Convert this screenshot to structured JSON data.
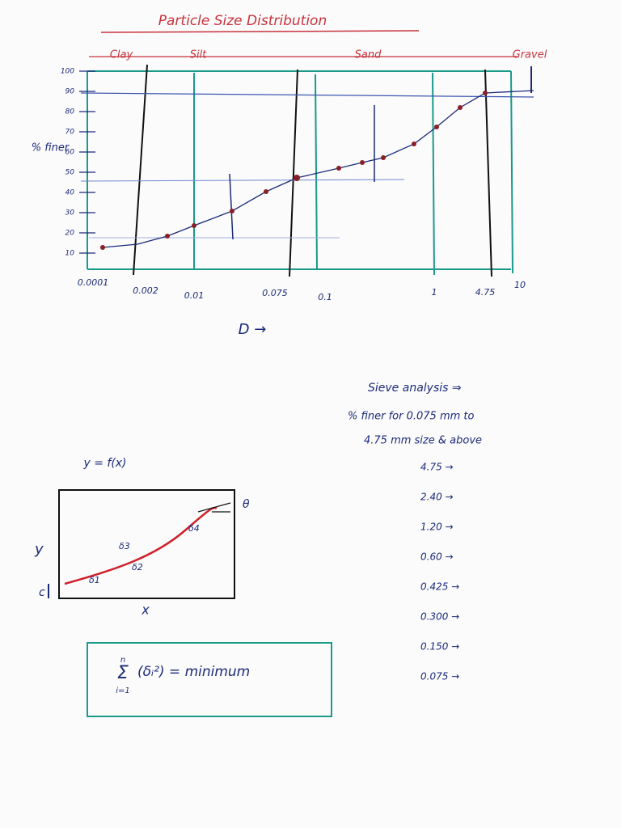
{
  "title": "Particle Size Distribution",
  "psd_chart": {
    "soil_classes": [
      "Clay",
      "Silt",
      "Sand",
      "Gravel"
    ],
    "y_axis_label": "% finer",
    "x_axis_label": "D →",
    "yticks": [
      "100",
      "90",
      "80",
      "70",
      "60",
      "50",
      "40",
      "30",
      "20",
      "10"
    ],
    "xticks": [
      "0.0001",
      "0.002",
      "0.01",
      "0.075",
      "0.1",
      "1",
      "4.75",
      "10"
    ]
  },
  "fit_diagram": {
    "equation": "y = f(x)",
    "y_label": "y",
    "x_label": "x",
    "intercept_label": "c",
    "angle_label": "θ",
    "deltas": [
      "δ1",
      "δ2",
      "δ3",
      "δ4"
    ]
  },
  "formula": {
    "sum_upper": "n",
    "sum_symbol": "Σ",
    "sum_lower": "i=1",
    "expression": "(δᵢ²) = minimum"
  },
  "sieve_analysis": {
    "heading": "Sieve analysis ⇒",
    "note_lines": [
      "% finer for 0.075 mm to",
      "4.75 mm size & above"
    ],
    "sizes": [
      "4.75 →",
      "2.40 →",
      "1.20 →",
      "0.60 →",
      "0.425 →",
      "0.300 →",
      "0.150 →",
      "0.075 →"
    ]
  }
}
